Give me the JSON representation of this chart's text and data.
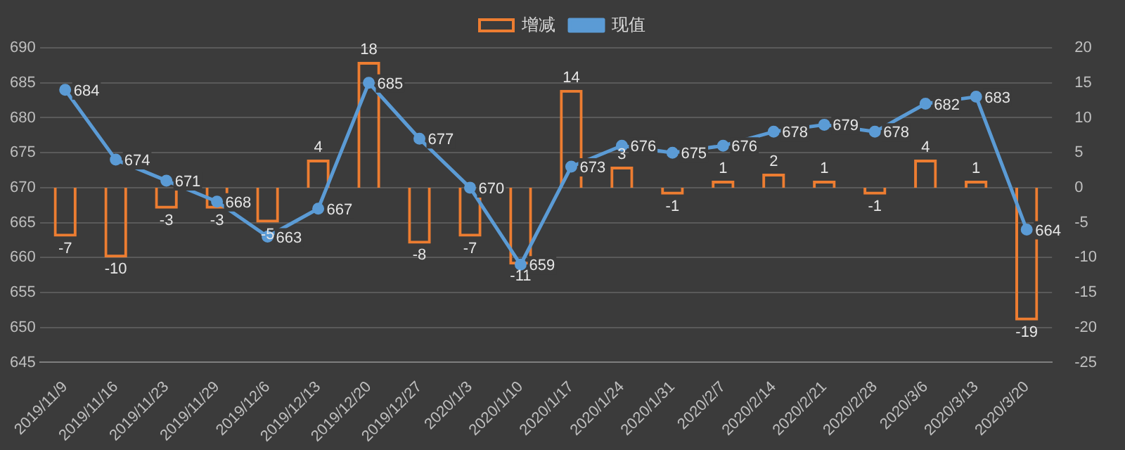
{
  "chart_data": {
    "type": "bar",
    "categories": [
      "2019/11/9",
      "2019/11/16",
      "2019/11/23",
      "2019/11/29",
      "2019/12/6",
      "2019/12/13",
      "2019/12/20",
      "2019/12/27",
      "2020/1/3",
      "2020/1/10",
      "2020/1/17",
      "2020/1/24",
      "2020/1/31",
      "2020/2/7",
      "2020/2/14",
      "2020/2/21",
      "2020/2/28",
      "2020/3/6",
      "2020/3/13",
      "2020/3/20"
    ],
    "series": [
      {
        "name": "增减",
        "axis": "y2",
        "color": "#ed7d31",
        "values": [
          -7,
          -10,
          -3,
          -3,
          -5,
          4,
          18,
          -8,
          -7,
          -11,
          14,
          3,
          -1,
          1,
          2,
          1,
          -1,
          4,
          1,
          -19
        ]
      },
      {
        "name": "现值",
        "type": "line",
        "axis": "y",
        "color": "#5b9bd5",
        "values": [
          684,
          674,
          671,
          668,
          663,
          667,
          685,
          677,
          670,
          659,
          673,
          676,
          675,
          676,
          678,
          679,
          678,
          682,
          683,
          664
        ]
      }
    ],
    "ylim": [
      645,
      690
    ],
    "yticks": [
      645,
      650,
      655,
      660,
      665,
      670,
      675,
      680,
      685,
      690
    ],
    "y2lim": [
      -25,
      20
    ],
    "y2ticks": [
      -25,
      -20,
      -15,
      -10,
      -5,
      0,
      5,
      10,
      15,
      20
    ],
    "grid": "y",
    "legend": "top",
    "marker": "circle",
    "line_style": "solid",
    "data_labels": true
  }
}
